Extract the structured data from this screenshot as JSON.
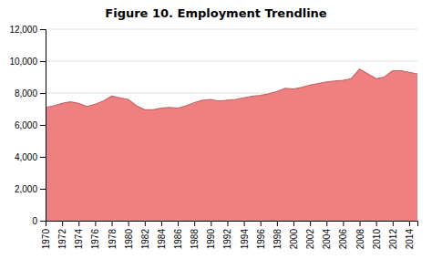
{
  "chart_data": {
    "type": "area",
    "title": "Figure 10. Employment Trendline",
    "x": [
      1970,
      1971,
      1972,
      1973,
      1974,
      1975,
      1976,
      1977,
      1978,
      1979,
      1980,
      1981,
      1982,
      1983,
      1984,
      1985,
      1986,
      1987,
      1988,
      1989,
      1990,
      1991,
      1992,
      1993,
      1994,
      1995,
      1996,
      1997,
      1998,
      1999,
      2000,
      2001,
      2002,
      2003,
      2004,
      2005,
      2006,
      2007,
      2008,
      2009,
      2010,
      2011,
      2012,
      2013,
      2014,
      2015
    ],
    "values": [
      7100,
      7200,
      7350,
      7450,
      7350,
      7150,
      7300,
      7500,
      7800,
      7700,
      7600,
      7200,
      6950,
      6950,
      7050,
      7100,
      7050,
      7200,
      7400,
      7550,
      7600,
      7500,
      7550,
      7600,
      7700,
      7800,
      7850,
      7950,
      8100,
      8300,
      8250,
      8350,
      8500,
      8600,
      8700,
      8750,
      8800,
      8900,
      9500,
      9200,
      8900,
      9000,
      9400,
      9400,
      9300,
      9200
    ],
    "color": "#F08080",
    "xlim": [
      1970,
      2015
    ],
    "xticks": [
      1970,
      1972,
      1974,
      1976,
      1978,
      1980,
      1982,
      1984,
      1986,
      1988,
      1990,
      1992,
      1994,
      1996,
      1998,
      2000,
      2002,
      2004,
      2006,
      2008,
      2010,
      2012,
      2014
    ],
    "ylim": [
      0,
      12000
    ],
    "yticks": [
      0,
      {
        "value": 2000,
        "label": "2,000"
      },
      {
        "value": 4000,
        "label": "4,000"
      },
      {
        "value": 6000,
        "label": "6,000"
      },
      {
        "value": 8000,
        "label": "8,000"
      },
      {
        "value": 10000,
        "label": "10,000"
      },
      {
        "value": 12000,
        "label": "12,000"
      }
    ],
    "grid": true
  }
}
